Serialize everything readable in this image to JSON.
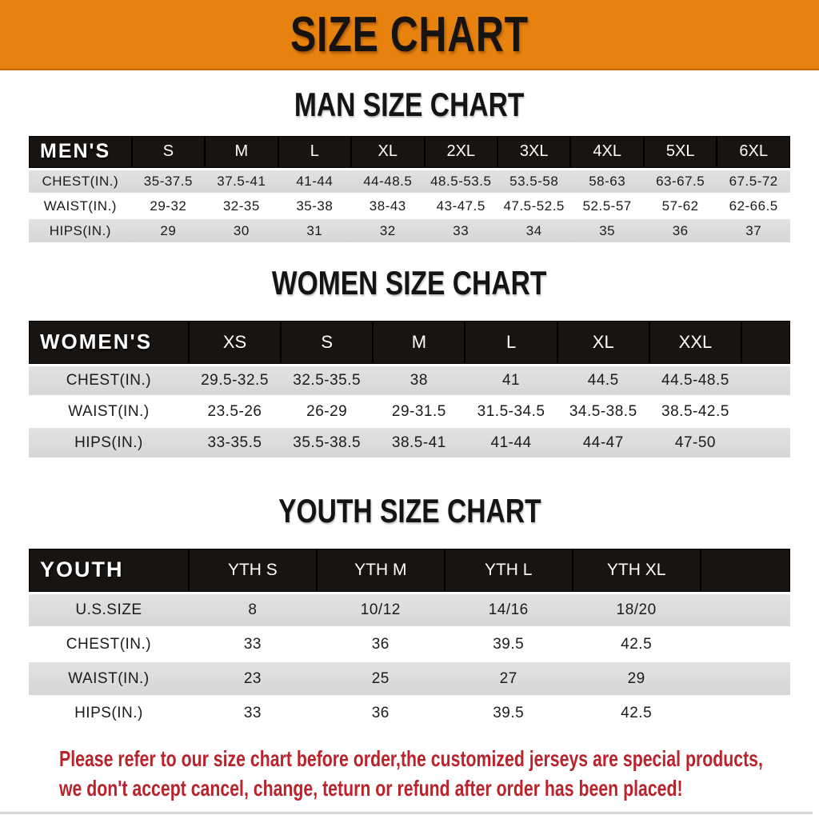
{
  "banner": {
    "title": "SIZE CHART",
    "bg_color": "#E8820F",
    "text_color": "#161310"
  },
  "sections": [
    {
      "title": "MAN SIZE CHART",
      "header_label": "MEN'S",
      "columns": [
        "S",
        "M",
        "L",
        "XL",
        "2XL",
        "3XL",
        "4XL",
        "5XL",
        "6XL"
      ],
      "rows": [
        {
          "label": "CHEST(IN.)",
          "values": [
            "35-37.5",
            "37.5-41",
            "41-44",
            "44-48.5",
            "48.5-53.5",
            "53.5-58",
            "58-63",
            "63-67.5",
            "67.5-72"
          ]
        },
        {
          "label": "WAIST(IN.)",
          "values": [
            "29-32",
            "32-35",
            "35-38",
            "38-43",
            "43-47.5",
            "47.5-52.5",
            "52.5-57",
            "57-62",
            "62-66.5"
          ]
        },
        {
          "label": "HIPS(IN.)",
          "values": [
            "29",
            "30",
            "31",
            "32",
            "33",
            "34",
            "35",
            "36",
            "37"
          ]
        }
      ]
    },
    {
      "title": "WOMEN SIZE CHART",
      "header_label": "WOMEN'S",
      "columns": [
        "XS",
        "S",
        "M",
        "L",
        "XL",
        "XXL"
      ],
      "rows": [
        {
          "label": "CHEST(IN.)",
          "values": [
            "29.5-32.5",
            "32.5-35.5",
            "38",
            "41",
            "44.5",
            "44.5-48.5"
          ]
        },
        {
          "label": "WAIST(IN.)",
          "values": [
            "23.5-26",
            "26-29",
            "29-31.5",
            "31.5-34.5",
            "34.5-38.5",
            "38.5-42.5"
          ]
        },
        {
          "label": "HIPS(IN.)",
          "values": [
            "33-35.5",
            "35.5-38.5",
            "38.5-41",
            "41-44",
            "44-47",
            "47-50"
          ]
        }
      ]
    },
    {
      "title": "YOUTH SIZE CHART",
      "header_label": "YOUTH",
      "columns": [
        "YTH S",
        "YTH M",
        "YTH L",
        "YTH XL"
      ],
      "rows": [
        {
          "label": "U.S.SIZE",
          "values": [
            "8",
            "10/12",
            "14/16",
            "18/20"
          ]
        },
        {
          "label": "CHEST(IN.)",
          "values": [
            "33",
            "36",
            "39.5",
            "42.5"
          ]
        },
        {
          "label": "WAIST(IN.)",
          "values": [
            "23",
            "25",
            "27",
            "29"
          ]
        },
        {
          "label": "HIPS(IN.)",
          "values": [
            "33",
            "36",
            "39.5",
            "42.5"
          ]
        }
      ]
    }
  ],
  "footer": {
    "line1": "Please refer to our size chart before order,the customized jerseys are special products,",
    "line2": "we don't accept cancel, change, teturn or refund after order has been placed!",
    "text_color": "#B9232B"
  },
  "colors": {
    "row_shade": "#DCDCDC",
    "header_bar": "#171412"
  }
}
